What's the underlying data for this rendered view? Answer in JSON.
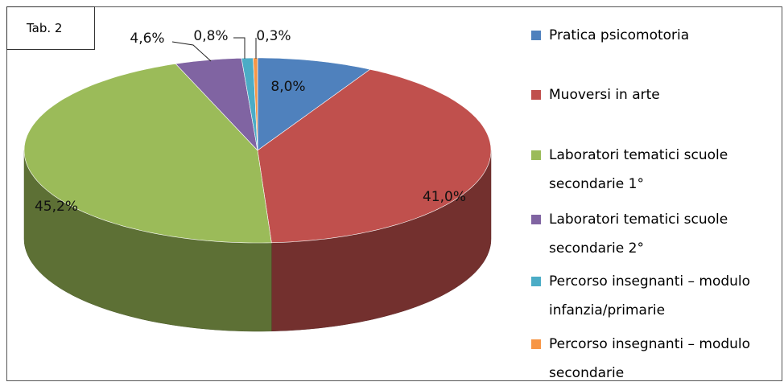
{
  "chart_data": {
    "type": "pie",
    "annotation": "Tab. 2",
    "categories": [
      "Pratica psicomotoria",
      "Muoversi in arte",
      "Laboratori tematici scuole secondarie 1°",
      "Laboratori tematici scuole secondarie 2°",
      "Percorso insegnanti – modulo infanzia/primarie",
      "Percorso insegnanti – modulo secondarie"
    ],
    "values": [
      8.0,
      41.0,
      45.2,
      4.6,
      0.8,
      0.3
    ],
    "value_labels": [
      "8,0%",
      "41,0%",
      "45,2%",
      "4,6%",
      "0,8%",
      "0,3%"
    ],
    "colors": [
      "#4f81bd",
      "#c0504d",
      "#9bbb59",
      "#8064a2",
      "#4bacc6",
      "#f79646"
    ],
    "legend": "right"
  }
}
